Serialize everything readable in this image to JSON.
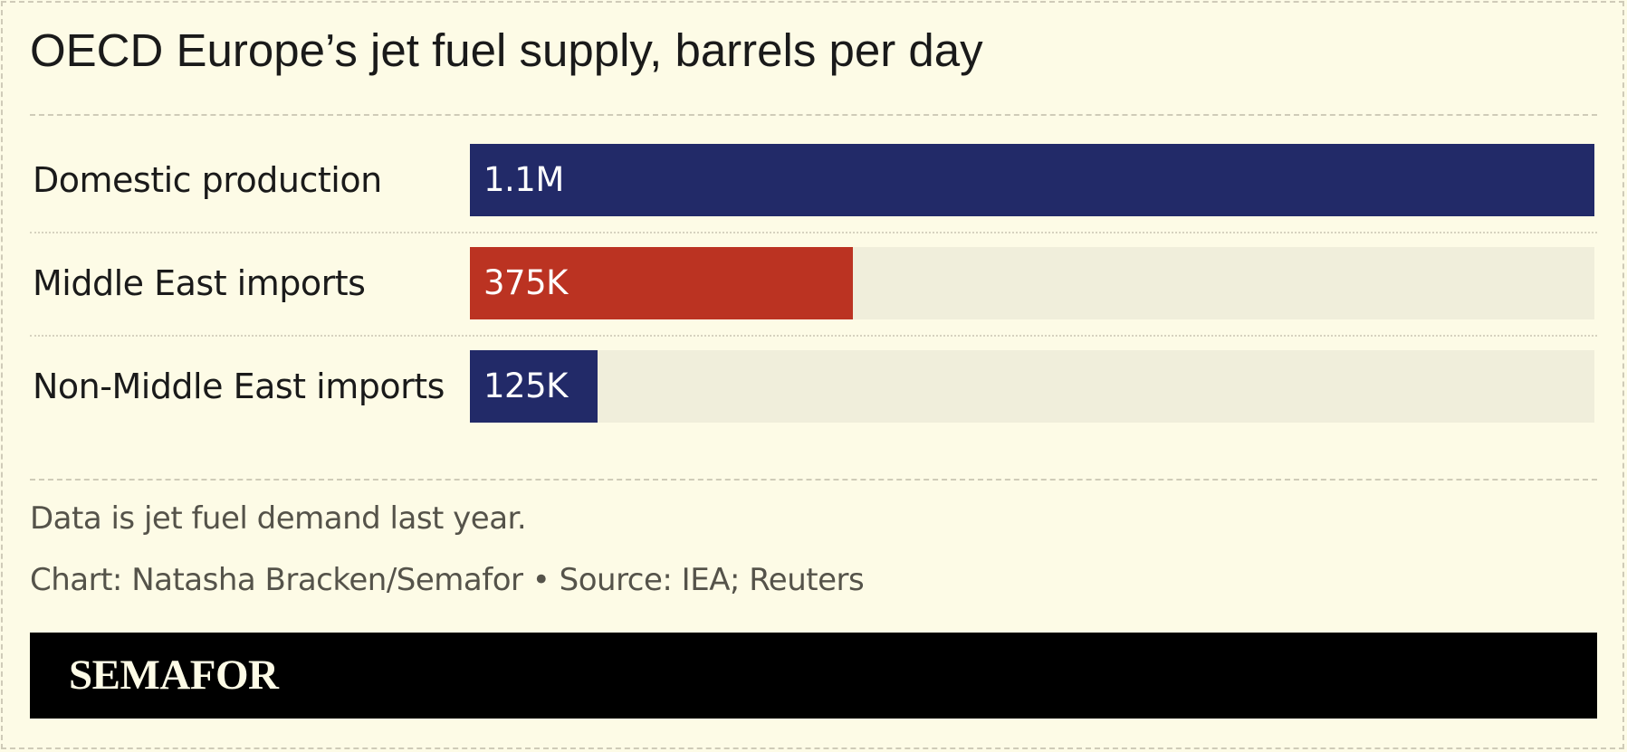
{
  "chart_data": {
    "type": "bar",
    "orientation": "horizontal",
    "title": "OECD Europe’s jet fuel supply, barrels per day",
    "categories": [
      "Domestic production",
      "Middle East imports",
      "Non-Middle East imports"
    ],
    "values": [
      1100000,
      375000,
      125000
    ],
    "value_labels": [
      "1.1M",
      "375K",
      "125K"
    ],
    "colors": [
      "#222a68",
      "#bb3322",
      "#222a68"
    ],
    "track_color": "#f0eedb",
    "xlim": [
      0,
      1100000
    ],
    "grid": false,
    "legend": "none"
  },
  "footer": {
    "note": "Data is jet fuel demand last year.",
    "credit": "Chart: Natasha Bracken/Semafor • Source: IEA; Reuters"
  },
  "brand": {
    "logo_text": "SEMAFOR",
    "bar_color": "#000000",
    "logo_color": "#fdfbe6"
  },
  "background_color": "#fdfbe6"
}
